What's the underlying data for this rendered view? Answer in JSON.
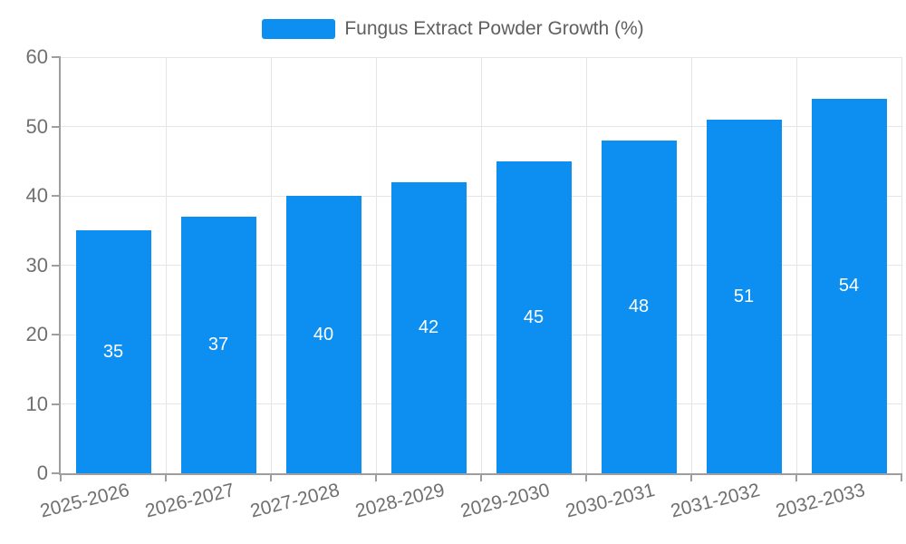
{
  "legend": {
    "label": "Fungus Extract Powder Growth (%)"
  },
  "colors": {
    "bar": "#0d8ff2",
    "grid_line": "#e5e5e8",
    "axis_line": "#9e9e9e",
    "tick_mark": "#9e9e9e",
    "tick_label": "#707070",
    "legend_text": "#5f5f5f",
    "bar_value_label": "#ffffff",
    "background": "#ffffff"
  },
  "chart_data": {
    "type": "bar",
    "categories": [
      "2025-2026",
      "2026-2027",
      "2027-2028",
      "2028-2029",
      "2029-2030",
      "2030-2031",
      "2031-2032",
      "2032-2033"
    ],
    "values": [
      35,
      37,
      40,
      42,
      45,
      48,
      51,
      54
    ],
    "legend": [
      "Fungus Extract Powder Growth (%)"
    ],
    "xlabel": "",
    "ylabel": "",
    "ylim": [
      0,
      60
    ],
    "yticks": [
      0,
      10,
      20,
      30,
      40,
      50,
      60
    ],
    "grid": true,
    "grid_vertical": true,
    "legend_position": "top-center",
    "bar_label_position": "inside-center",
    "x_tick_rotation_deg": 14
  }
}
